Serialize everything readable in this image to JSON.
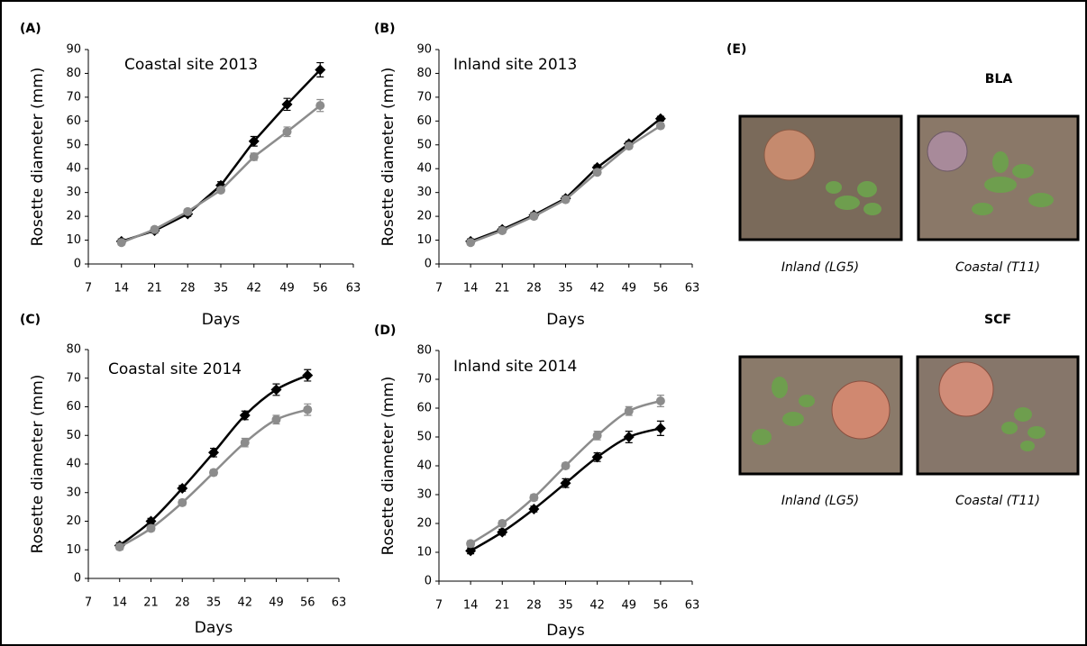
{
  "chart_data": [
    {
      "type": "line",
      "panel": "(A)",
      "title": "Coastal site 2013",
      "x_label": "Days",
      "y_label": "Rosette diameter (mm)",
      "x": [
        14,
        21,
        28,
        35,
        42,
        49,
        56
      ],
      "xlim": [
        7,
        63
      ],
      "xticks": [
        7,
        14,
        21,
        28,
        35,
        42,
        49,
        56,
        63
      ],
      "ylim": [
        0,
        90
      ],
      "yticks": [
        0,
        10,
        20,
        30,
        40,
        50,
        60,
        70,
        80,
        90
      ],
      "smooth": false,
      "series": [
        {
          "color": "#000000",
          "marker": "diamond",
          "values": [
            9.5,
            14,
            21,
            33,
            51.5,
            67,
            81.5
          ],
          "errors": [
            1,
            1,
            1,
            1.5,
            2,
            2.5,
            3
          ]
        },
        {
          "color": "#8c8c8c",
          "marker": "circle",
          "values": [
            9,
            14.5,
            22,
            31,
            45,
            55.5,
            66.5
          ],
          "errors": [
            1,
            1,
            1,
            1,
            1.5,
            2,
            2.5
          ]
        }
      ]
    },
    {
      "type": "line",
      "panel": "(B)",
      "title": "Inland site 2013",
      "x_label": "Days",
      "y_label": "Rosette diameter (mm)",
      "x": [
        14,
        21,
        28,
        35,
        42,
        49,
        56
      ],
      "xlim": [
        7,
        63
      ],
      "xticks": [
        7,
        14,
        21,
        28,
        35,
        42,
        49,
        56,
        63
      ],
      "ylim": [
        0,
        90
      ],
      "yticks": [
        0,
        10,
        20,
        30,
        40,
        50,
        60,
        70,
        80,
        90
      ],
      "smooth": false,
      "series": [
        {
          "color": "#000000",
          "marker": "diamond",
          "values": [
            9.5,
            14.5,
            20.5,
            27.5,
            40.5,
            50.5,
            61
          ],
          "errors": [
            1,
            1,
            1,
            1,
            1,
            1,
            1
          ]
        },
        {
          "color": "#8c8c8c",
          "marker": "circle",
          "values": [
            9,
            14,
            20,
            27,
            38.5,
            49.5,
            58
          ],
          "errors": [
            1,
            1,
            1,
            1,
            1,
            1,
            1
          ]
        }
      ]
    },
    {
      "type": "line",
      "panel": "(C)",
      "title": "Coastal site 2014",
      "x_label": "Days",
      "y_label": "Rosette diameter (mm)",
      "x": [
        14,
        21,
        28,
        35,
        42,
        49,
        56
      ],
      "xlim": [
        7,
        63
      ],
      "xticks": [
        7,
        14,
        21,
        28,
        35,
        42,
        49,
        56,
        63
      ],
      "ylim": [
        0,
        80
      ],
      "yticks": [
        0,
        10,
        20,
        30,
        40,
        50,
        60,
        70,
        80
      ],
      "smooth": true,
      "series": [
        {
          "color": "#000000",
          "marker": "diamond",
          "values": [
            11.5,
            20,
            31.5,
            44,
            57,
            66,
            71
          ],
          "errors": [
            1,
            1,
            1,
            1.5,
            1.5,
            2,
            2
          ]
        },
        {
          "color": "#8c8c8c",
          "marker": "circle",
          "values": [
            11,
            17.5,
            26.5,
            37,
            47.5,
            55.5,
            59
          ],
          "errors": [
            1,
            1,
            1,
            1,
            1.5,
            1.5,
            2
          ]
        }
      ]
    },
    {
      "type": "line",
      "panel": "(D)",
      "title": "Inland site 2014",
      "x_label": "Days",
      "y_label": "Rosette diameter (mm)",
      "x": [
        14,
        21,
        28,
        35,
        42,
        49,
        56
      ],
      "xlim": [
        7,
        63
      ],
      "xticks": [
        7,
        14,
        21,
        28,
        35,
        42,
        49,
        56,
        63
      ],
      "ylim": [
        0,
        80
      ],
      "yticks": [
        0,
        10,
        20,
        30,
        40,
        50,
        60,
        70,
        80
      ],
      "smooth": true,
      "series": [
        {
          "color": "#000000",
          "marker": "diamond",
          "values": [
            10.5,
            17,
            25,
            34,
            43,
            50,
            53
          ],
          "errors": [
            1,
            1,
            1,
            1.5,
            1.5,
            2,
            2.5
          ]
        },
        {
          "color": "#8c8c8c",
          "marker": "circle",
          "values": [
            13,
            20,
            29,
            40,
            50.5,
            59,
            62.5
          ],
          "errors": [
            1,
            1,
            1,
            1,
            1.5,
            1.5,
            2
          ]
        }
      ]
    }
  ],
  "panel_e": {
    "panel": "(E)",
    "groups": [
      {
        "title": "BLA",
        "captions": [
          "Inland (LG5)",
          "Coastal (T11)"
        ]
      },
      {
        "title": "SCF",
        "captions": [
          "Inland (LG5)",
          "Coastal (T11)"
        ]
      }
    ]
  }
}
